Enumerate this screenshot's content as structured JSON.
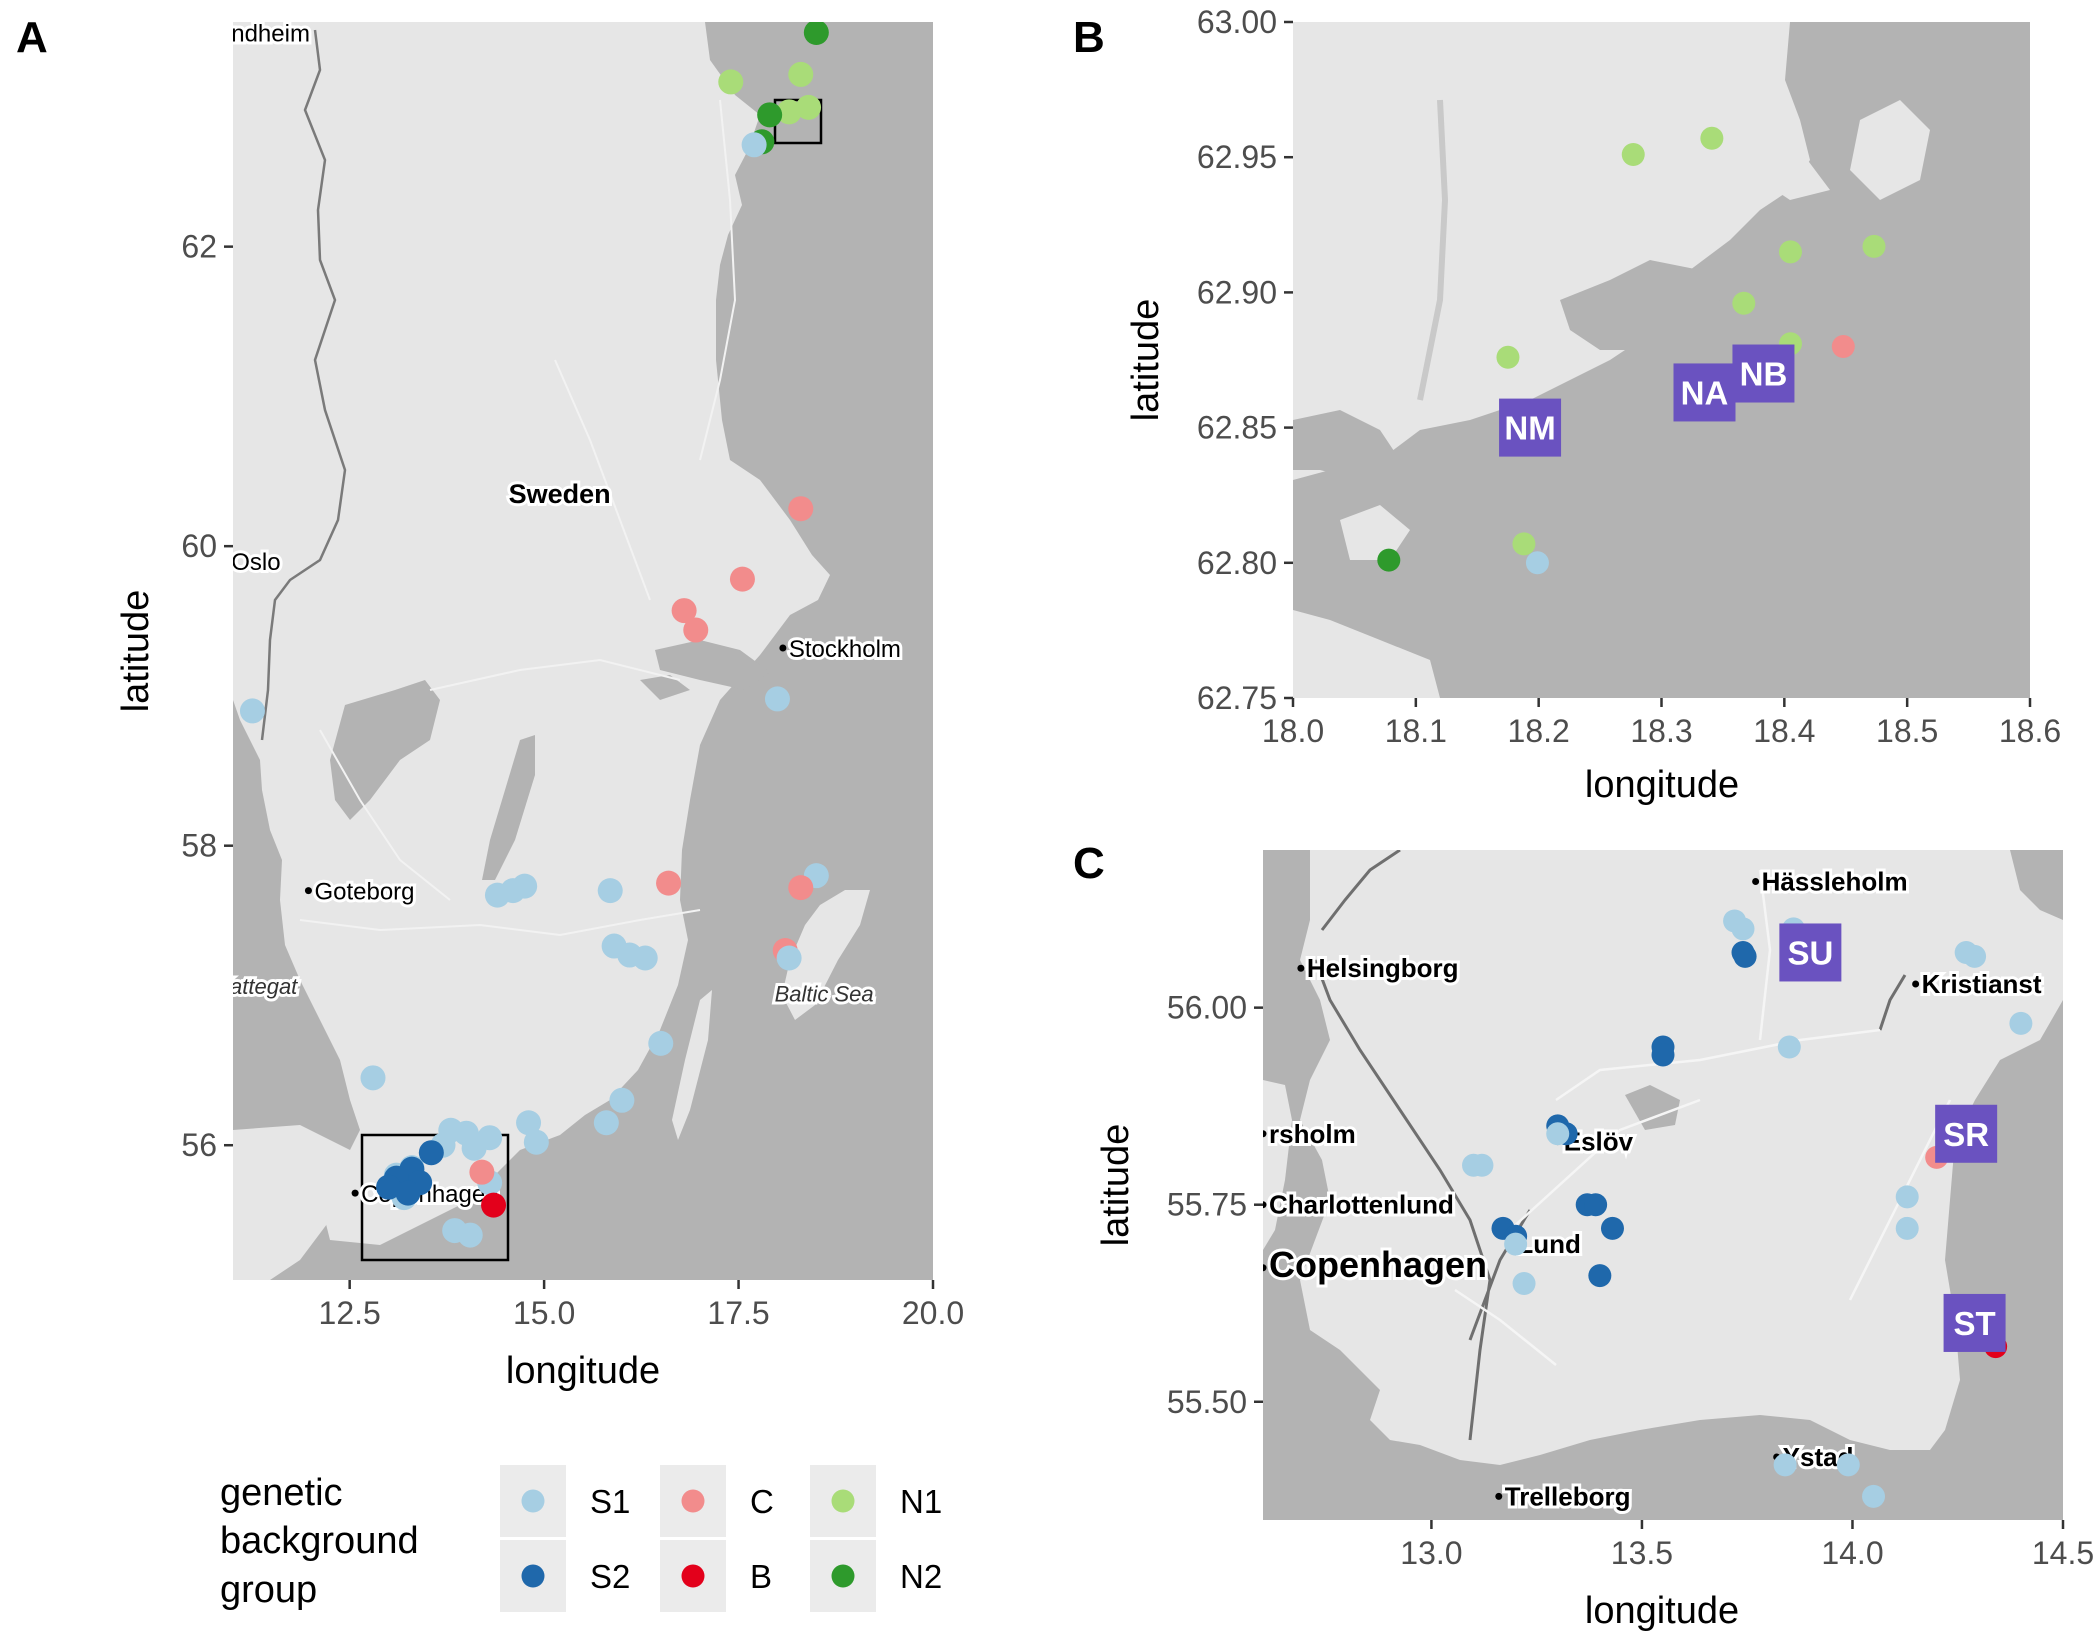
{
  "colors": {
    "S1": "#a6cee3",
    "S2": "#1f68ab",
    "C": "#f28c8c",
    "B": "#e3001b",
    "N1": "#a9dc78",
    "N2": "#2e9a2c",
    "land": "#e6e6e6",
    "water": "#b3b3b3",
    "site_label_bg": "#6a52c0"
  },
  "chart_data": [
    {
      "type": "scatter",
      "panel": "A",
      "xlabel": "longitude",
      "ylabel": "latitude",
      "xlim": [
        11.0,
        20.0
      ],
      "ylim": [
        55.1,
        63.5
      ],
      "xticks": [
        "12.5",
        "15.0",
        "17.5",
        "20.0"
      ],
      "yticks": [
        "56",
        "58",
        "60",
        "62"
      ],
      "places": [
        {
          "name": "ndheim",
          "lon": 10.9,
          "lat": 63.43
        },
        {
          "name": "Sweden",
          "lon": 15.2,
          "lat": 60.35,
          "bold": true
        },
        {
          "name": "Oslo",
          "lon": 10.9,
          "lat": 59.9
        },
        {
          "name": "Stockholm",
          "lon": 18.07,
          "lat": 59.32
        },
        {
          "name": "Goteborg",
          "lon": 11.97,
          "lat": 57.7
        },
        {
          "name": "Kattegat",
          "lon": 11.3,
          "lat": 57.07,
          "sea": true
        },
        {
          "name": "Baltic Sea",
          "lon": 18.6,
          "lat": 57.02,
          "sea": true
        },
        {
          "name": "Copenhagen",
          "lon": 12.57,
          "lat": 55.68
        }
      ],
      "points": [
        {
          "g": "N2",
          "lon": 18.5,
          "lat": 63.43
        },
        {
          "g": "N1",
          "lon": 17.4,
          "lat": 63.1
        },
        {
          "g": "N1",
          "lon": 18.3,
          "lat": 63.15
        },
        {
          "g": "N1",
          "lon": 18.15,
          "lat": 62.9
        },
        {
          "g": "N1",
          "lon": 18.4,
          "lat": 62.93
        },
        {
          "g": "N2",
          "lon": 17.9,
          "lat": 62.88
        },
        {
          "g": "N2",
          "lon": 17.8,
          "lat": 62.7
        },
        {
          "g": "S1",
          "lon": 17.7,
          "lat": 62.68
        },
        {
          "g": "C",
          "lon": 18.3,
          "lat": 60.25
        },
        {
          "g": "C",
          "lon": 17.55,
          "lat": 59.78
        },
        {
          "g": "C",
          "lon": 16.8,
          "lat": 59.57
        },
        {
          "g": "C",
          "lon": 16.95,
          "lat": 59.44
        },
        {
          "g": "S1",
          "lon": 18.0,
          "lat": 58.98
        },
        {
          "g": "S1",
          "lon": 11.25,
          "lat": 58.9
        },
        {
          "g": "S1",
          "lon": 14.4,
          "lat": 57.67
        },
        {
          "g": "S1",
          "lon": 14.6,
          "lat": 57.7
        },
        {
          "g": "S1",
          "lon": 14.75,
          "lat": 57.73
        },
        {
          "g": "S1",
          "lon": 15.85,
          "lat": 57.7
        },
        {
          "g": "C",
          "lon": 16.6,
          "lat": 57.75
        },
        {
          "g": "S1",
          "lon": 18.5,
          "lat": 57.8
        },
        {
          "g": "C",
          "lon": 18.3,
          "lat": 57.72
        },
        {
          "g": "S1",
          "lon": 15.9,
          "lat": 57.33
        },
        {
          "g": "S1",
          "lon": 16.1,
          "lat": 57.27
        },
        {
          "g": "S1",
          "lon": 16.3,
          "lat": 57.25
        },
        {
          "g": "C",
          "lon": 18.1,
          "lat": 57.3
        },
        {
          "g": "S1",
          "lon": 18.15,
          "lat": 57.25
        },
        {
          "g": "S1",
          "lon": 16.5,
          "lat": 56.68
        },
        {
          "g": "S1",
          "lon": 12.8,
          "lat": 56.45
        },
        {
          "g": "S1",
          "lon": 16.0,
          "lat": 56.3
        },
        {
          "g": "S1",
          "lon": 15.8,
          "lat": 56.15
        },
        {
          "g": "S1",
          "lon": 14.8,
          "lat": 56.15
        },
        {
          "g": "S1",
          "lon": 14.9,
          "lat": 56.02
        },
        {
          "g": "S1",
          "lon": 13.8,
          "lat": 56.1
        },
        {
          "g": "S1",
          "lon": 14.0,
          "lat": 56.08
        },
        {
          "g": "S1",
          "lon": 14.3,
          "lat": 56.05
        },
        {
          "g": "S1",
          "lon": 13.7,
          "lat": 56.0
        },
        {
          "g": "S1",
          "lon": 14.1,
          "lat": 55.98
        },
        {
          "g": "S1",
          "lon": 13.1,
          "lat": 55.8
        },
        {
          "g": "S1",
          "lon": 13.3,
          "lat": 55.85
        },
        {
          "g": "S1",
          "lon": 13.2,
          "lat": 55.65
        },
        {
          "g": "S1",
          "lon": 13.85,
          "lat": 55.43
        },
        {
          "g": "S1",
          "lon": 14.05,
          "lat": 55.4
        },
        {
          "g": "S1",
          "lon": 14.3,
          "lat": 55.75
        },
        {
          "g": "S2",
          "lon": 13.55,
          "lat": 55.95
        },
        {
          "g": "S2",
          "lon": 13.3,
          "lat": 55.84
        },
        {
          "g": "S2",
          "lon": 13.4,
          "lat": 55.75
        },
        {
          "g": "S2",
          "lon": 13.2,
          "lat": 55.72
        },
        {
          "g": "S2",
          "lon": 13.1,
          "lat": 55.78
        },
        {
          "g": "S2",
          "lon": 13.0,
          "lat": 55.72
        },
        {
          "g": "S2",
          "lon": 13.25,
          "lat": 55.68
        },
        {
          "g": "C",
          "lon": 14.2,
          "lat": 55.82
        },
        {
          "g": "B",
          "lon": 14.35,
          "lat": 55.6
        }
      ],
      "boxes": [
        {
          "x0": 17.95,
          "x1": 18.6,
          "y0": 62.75,
          "y1": 63.0
        },
        {
          "x0": 12.6,
          "x1": 14.5,
          "y0": 55.35,
          "y1": 56.2
        }
      ]
    },
    {
      "type": "scatter",
      "panel": "B",
      "xlabel": "longitude",
      "ylabel": "latitude",
      "xlim": [
        18.0,
        18.6
      ],
      "ylim": [
        62.75,
        63.0
      ],
      "xticks": [
        "18.0",
        "18.1",
        "18.2",
        "18.3",
        "18.4",
        "18.5",
        "18.6"
      ],
      "yticks": [
        "62.75",
        "62.80",
        "62.85",
        "62.90",
        "62.95",
        "63.00"
      ],
      "points": [
        {
          "g": "N1",
          "lon": 18.277,
          "lat": 62.951
        },
        {
          "g": "N1",
          "lon": 18.341,
          "lat": 62.957
        },
        {
          "g": "N1",
          "lon": 18.405,
          "lat": 62.915
        },
        {
          "g": "N1",
          "lon": 18.473,
          "lat": 62.917
        },
        {
          "g": "N1",
          "lon": 18.367,
          "lat": 62.896
        },
        {
          "g": "N1",
          "lon": 18.405,
          "lat": 62.881
        },
        {
          "g": "N1",
          "lon": 18.175,
          "lat": 62.876
        },
        {
          "g": "C",
          "lon": 18.448,
          "lat": 62.88
        },
        {
          "g": "N1",
          "lon": 18.188,
          "lat": 62.807
        },
        {
          "g": "S1",
          "lon": 18.199,
          "lat": 62.8
        },
        {
          "g": "N2",
          "lon": 18.078,
          "lat": 62.801
        }
      ],
      "site_labels": [
        {
          "name": "NM",
          "lon": 18.193,
          "lat": 62.85
        },
        {
          "name": "NA",
          "lon": 18.335,
          "lat": 62.863
        },
        {
          "name": "NB",
          "lon": 18.383,
          "lat": 62.87
        }
      ]
    },
    {
      "type": "scatter",
      "panel": "C",
      "xlabel": "longitude",
      "ylabel": "latitude",
      "xlim": [
        12.6,
        14.5
      ],
      "ylim": [
        55.35,
        56.2
      ],
      "xticks": [
        "13.0",
        "13.5",
        "14.0",
        "14.5"
      ],
      "yticks": [
        "55.50",
        "55.75",
        "56.00"
      ],
      "places": [
        {
          "name": "Hässleholm",
          "lon": 13.77,
          "lat": 56.16
        },
        {
          "name": "Helsingborg",
          "lon": 12.69,
          "lat": 56.05
        },
        {
          "name": "Kristianst",
          "lon": 14.15,
          "lat": 56.03
        },
        {
          "name": "rsholm",
          "lon": 12.6,
          "lat": 55.84
        },
        {
          "name": "Eslöv",
          "lon": 13.3,
          "lat": 55.83
        },
        {
          "name": "Charlottenlund",
          "lon": 12.6,
          "lat": 55.75
        },
        {
          "name": "Lund",
          "lon": 13.19,
          "lat": 55.7
        },
        {
          "name": "Copenhagen",
          "lon": 12.6,
          "lat": 55.67,
          "big": true
        },
        {
          "name": "Ystad",
          "lon": 13.82,
          "lat": 55.43
        },
        {
          "name": "Trelleborg",
          "lon": 13.16,
          "lat": 55.38
        }
      ],
      "points": [
        {
          "g": "S1",
          "lon": 13.72,
          "lat": 56.11
        },
        {
          "g": "S1",
          "lon": 13.74,
          "lat": 56.1
        },
        {
          "g": "S1",
          "lon": 13.86,
          "lat": 56.1
        },
        {
          "g": "S2",
          "lon": 13.74,
          "lat": 56.07
        },
        {
          "g": "S2",
          "lon": 13.745,
          "lat": 56.065
        },
        {
          "g": "S1",
          "lon": 14.27,
          "lat": 56.07
        },
        {
          "g": "S1",
          "lon": 14.29,
          "lat": 56.065
        },
        {
          "g": "S1",
          "lon": 14.4,
          "lat": 55.98
        },
        {
          "g": "S2",
          "lon": 13.55,
          "lat": 55.95
        },
        {
          "g": "S2",
          "lon": 13.55,
          "lat": 55.94
        },
        {
          "g": "S1",
          "lon": 13.85,
          "lat": 55.95
        },
        {
          "g": "S2",
          "lon": 13.3,
          "lat": 55.85
        },
        {
          "g": "S2",
          "lon": 13.32,
          "lat": 55.84
        },
        {
          "g": "S1",
          "lon": 13.3,
          "lat": 55.84
        },
        {
          "g": "S1",
          "lon": 13.1,
          "lat": 55.8
        },
        {
          "g": "S1",
          "lon": 13.12,
          "lat": 55.8
        },
        {
          "g": "C",
          "lon": 14.2,
          "lat": 55.81
        },
        {
          "g": "S1",
          "lon": 14.13,
          "lat": 55.76
        },
        {
          "g": "S1",
          "lon": 14.13,
          "lat": 55.72
        },
        {
          "g": "S2",
          "lon": 13.37,
          "lat": 55.75
        },
        {
          "g": "S2",
          "lon": 13.39,
          "lat": 55.75
        },
        {
          "g": "S2",
          "lon": 13.43,
          "lat": 55.72
        },
        {
          "g": "S2",
          "lon": 13.17,
          "lat": 55.72
        },
        {
          "g": "S2",
          "lon": 13.2,
          "lat": 55.71
        },
        {
          "g": "S1",
          "lon": 13.2,
          "lat": 55.7
        },
        {
          "g": "S2",
          "lon": 13.4,
          "lat": 55.66
        },
        {
          "g": "S1",
          "lon": 13.22,
          "lat": 55.65
        },
        {
          "g": "B",
          "lon": 14.34,
          "lat": 55.57
        },
        {
          "g": "S1",
          "lon": 13.84,
          "lat": 55.42
        },
        {
          "g": "S1",
          "lon": 13.99,
          "lat": 55.42
        },
        {
          "g": "S1",
          "lon": 14.05,
          "lat": 55.38
        }
      ],
      "site_labels": [
        {
          "name": "SU",
          "lon": 13.9,
          "lat": 56.07
        },
        {
          "name": "SR",
          "lon": 14.27,
          "lat": 55.84
        },
        {
          "name": "ST",
          "lon": 14.29,
          "lat": 55.6
        }
      ]
    }
  ],
  "legend": {
    "title": [
      "genetic",
      "background",
      "group"
    ],
    "items": [
      {
        "key": "S1",
        "label": "S1"
      },
      {
        "key": "S2",
        "label": "S2"
      },
      {
        "key": "C",
        "label": "C"
      },
      {
        "key": "B",
        "label": "B"
      },
      {
        "key": "N1",
        "label": "N1"
      },
      {
        "key": "N2",
        "label": "N2"
      }
    ]
  }
}
